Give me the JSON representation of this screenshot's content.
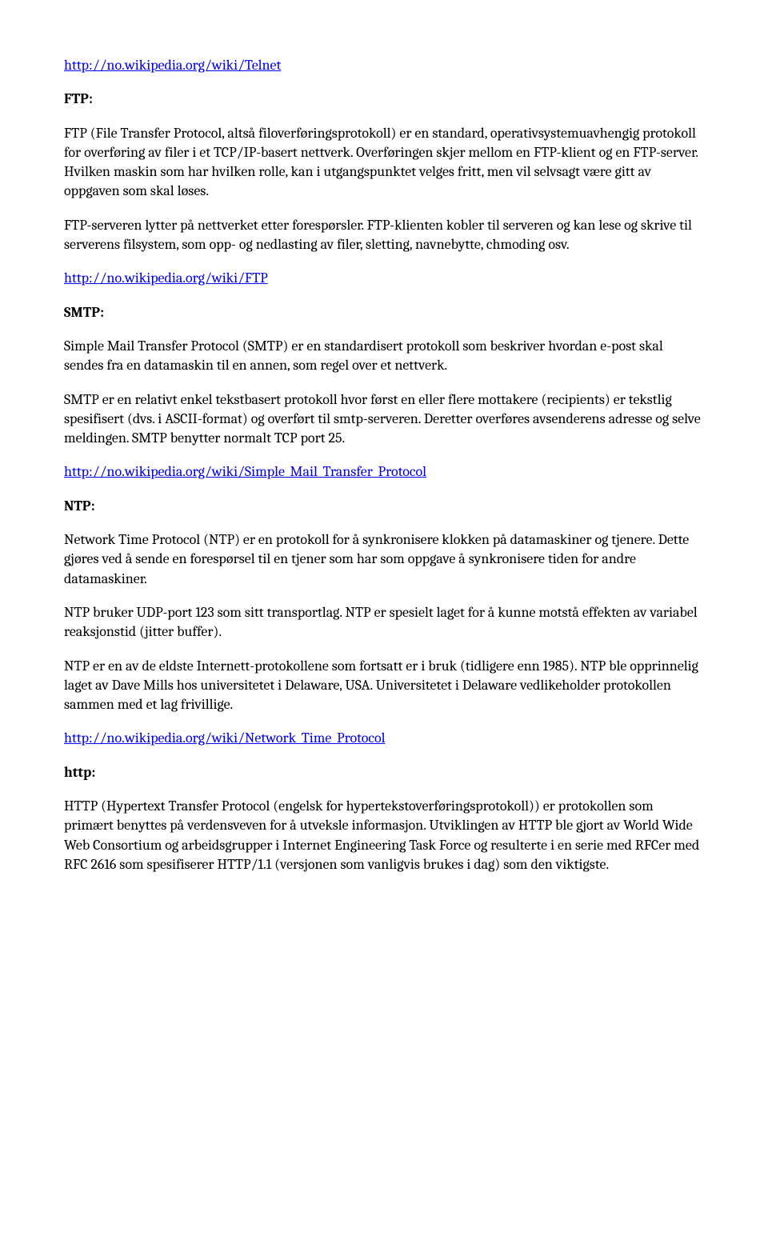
{
  "doc": {
    "font_family": "Cambria, Georgia, serif",
    "font_size_pt": 12,
    "text_color": "#000000",
    "link_color": "#0000ee",
    "background_color": "#ffffff"
  },
  "link_telnet": "http://no.wikipedia.org/wiki/Telnet",
  "ftp": {
    "heading": "FTP:",
    "p1": "FTP (File Transfer Protocol, altså filoverføringsprotokoll) er en standard, operativsystemuavhengig protokoll for overføring av filer i et TCP/IP-basert nettverk. Overføringen skjer mellom en FTP-klient og en FTP-server. Hvilken maskin som har hvilken rolle, kan i utgangspunktet velges fritt, men vil selvsagt være gitt av oppgaven som skal løses.",
    "p2": "FTP-serveren lytter på nettverket etter forespørsler. FTP-klienten kobler til serveren og kan lese og skrive til serverens filsystem, som opp- og nedlasting av filer, sletting, navnebytte, chmoding osv.",
    "link": "http://no.wikipedia.org/wiki/FTP"
  },
  "smtp": {
    "heading": "SMTP:",
    "p1": "Simple Mail Transfer Protocol (SMTP) er en standardisert protokoll som beskriver hvordan e-post skal sendes fra en datamaskin til en annen, som regel over et nettverk.",
    "p2": "SMTP er en relativt enkel tekstbasert protokoll hvor først en eller flere mottakere (recipients) er tekstlig spesifisert (dvs. i ASCII-format) og overført til smtp-serveren. Deretter overføres avsenderens adresse og selve meldingen. SMTP benytter normalt TCP port 25.",
    "link": "http://no.wikipedia.org/wiki/Simple_Mail_Transfer_Protocol"
  },
  "ntp": {
    "heading": "NTP:",
    "p1": "Network Time Protocol (NTP) er en protokoll for å synkronisere klokken på datamaskiner og tjenere. Dette gjøres ved å sende en forespørsel til en tjener som har som oppgave å synkronisere tiden for andre datamaskiner.",
    "p2": "NTP bruker UDP-port 123 som sitt transportlag. NTP er spesielt laget for å kunne motstå effekten av variabel reaksjonstid (jitter buffer).",
    "p3": "NTP er en av de eldste Internett-protokollene som fortsatt er i bruk (tidligere enn 1985). NTP ble opprinnelig laget av Dave Mills hos universitetet i Delaware, USA. Universitetet i Delaware vedlikeholder protokollen sammen med et lag frivillige.",
    "link": "http://no.wikipedia.org/wiki/Network_Time_Protocol"
  },
  "http": {
    "heading": "http:",
    "p1": "HTTP (Hypertext Transfer Protocol (engelsk for hypertekstoverføringsprotokoll)) er protokollen som primært benyttes på verdensveven for å utveksle informasjon. Utviklingen av HTTP ble gjort av World Wide Web Consortium og arbeidsgrupper i Internet Engineering Task Force og resulterte i en serie med RFCer med RFC 2616 som spesifiserer HTTP/1.1 (versjonen som vanligvis brukes i dag) som den viktigste."
  }
}
